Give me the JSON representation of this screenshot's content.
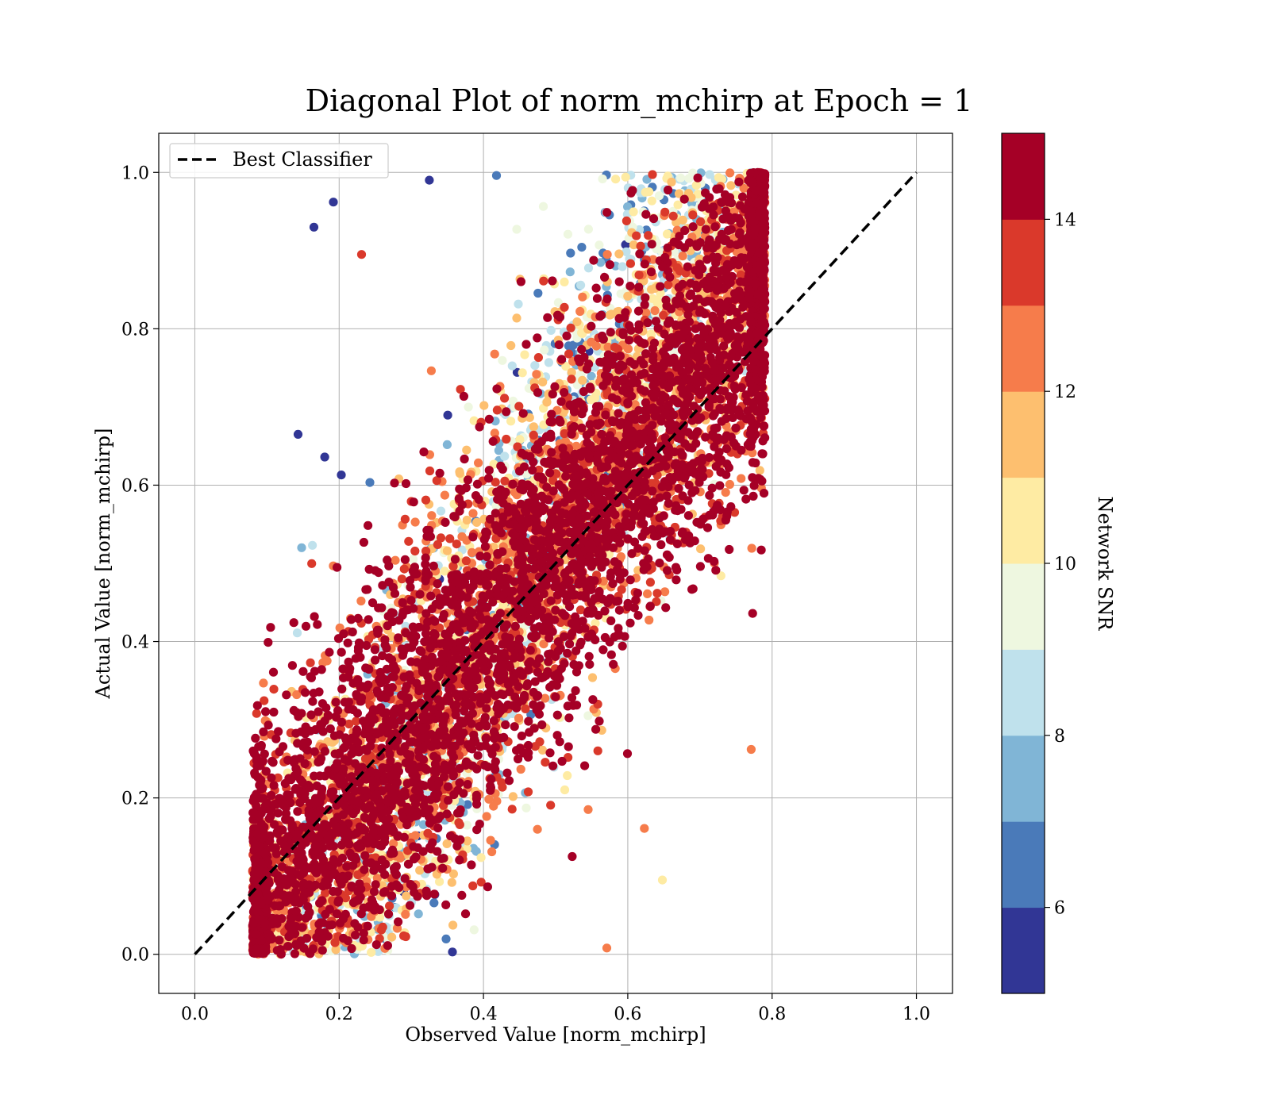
{
  "chart_data": {
    "type": "scatter",
    "title": "Diagonal Plot of norm_mchirp at Epoch = 1",
    "xlabel": "Observed Value [norm_mchirp]",
    "ylabel": "Actual Value [norm_mchirp]",
    "xlim": [
      -0.05,
      1.05
    ],
    "ylim": [
      -0.05,
      1.05
    ],
    "xticks": [
      0.0,
      0.2,
      0.4,
      0.6,
      0.8,
      1.0
    ],
    "yticks": [
      0.0,
      0.2,
      0.4,
      0.6,
      0.8,
      1.0
    ],
    "xtick_labels": [
      "0.0",
      "0.2",
      "0.4",
      "0.6",
      "0.8",
      "1.0"
    ],
    "ytick_labels": [
      "0.0",
      "0.2",
      "0.4",
      "0.6",
      "0.8",
      "1.0"
    ],
    "grid": true,
    "legend": {
      "placement": "top-left",
      "entries": [
        "Best Classifier"
      ]
    },
    "reference_line": {
      "name": "Best Classifier",
      "style": "dashed",
      "color": "#000000",
      "x": [
        0.0,
        1.0
      ],
      "y": [
        0.0,
        1.0
      ]
    },
    "colorbar": {
      "label": "Network SNR",
      "range": [
        5,
        15
      ],
      "bins": 10,
      "ticks": [
        6,
        8,
        10,
        12,
        14
      ],
      "tick_labels": [
        "6",
        "8",
        "10",
        "12",
        "14"
      ],
      "colormap": [
        "#313695",
        "#4575b4",
        "#74add1",
        "#abd9e9",
        "#e0f3f8",
        "#fee090",
        "#fdae61",
        "#f46d43",
        "#d73027",
        "#a50026"
      ],
      "colormap_display": [
        "#313695",
        "#4a7ab9",
        "#80b5d6",
        "#bfe1ec",
        "#eef7e0",
        "#feeba3",
        "#fdbf6f",
        "#f67c4b",
        "#da392b",
        "#a50026"
      ]
    },
    "scatter_summary": {
      "description_points": "Dense scatter of several thousand points; predictions follow the diagonal with spread, high-SNR points (dark red) cluster near the diagonal, low-SNR points (blue) spread toward the prediction mean.",
      "x_range": [
        0.08,
        0.79
      ],
      "y_range": [
        0.0,
        1.0
      ]
    },
    "points_highlight": [
      {
        "x": 0.165,
        "y": 0.93,
        "snr": 5.5
      },
      {
        "x": 0.192,
        "y": 0.962,
        "snr": 5.5
      },
      {
        "x": 0.143,
        "y": 0.665,
        "snr": 5.5
      },
      {
        "x": 0.18,
        "y": 0.636,
        "snr": 5.5
      },
      {
        "x": 0.203,
        "y": 0.613,
        "snr": 5.5
      },
      {
        "x": 0.148,
        "y": 0.52,
        "snr": 7.5
      },
      {
        "x": 0.163,
        "y": 0.523,
        "snr": 8.5
      },
      {
        "x": 0.142,
        "y": 0.411,
        "snr": 8.5
      },
      {
        "x": 0.231,
        "y": 0.895,
        "snr": 13.5
      },
      {
        "x": 0.648,
        "y": 0.095,
        "snr": 10.5
      },
      {
        "x": 0.571,
        "y": 0.008,
        "snr": 12.5
      },
      {
        "x": 0.771,
        "y": 0.262,
        "snr": 12.5
      },
      {
        "x": 0.623,
        "y": 0.161,
        "snr": 12.5
      },
      {
        "x": 0.785,
        "y": 0.517,
        "snr": 14.5
      },
      {
        "x": 0.773,
        "y": 0.436,
        "snr": 14.5
      },
      {
        "x": 0.783,
        "y": 0.693,
        "snr": 14.5
      },
      {
        "x": 0.787,
        "y": 0.891,
        "snr": 14.5
      },
      {
        "x": 0.357,
        "y": 0.003,
        "snr": 5.5
      },
      {
        "x": 0.153,
        "y": 0.003,
        "snr": 11.5
      },
      {
        "x": 0.085,
        "y": 0.075,
        "snr": 14.5
      },
      {
        "x": 0.325,
        "y": 0.99,
        "snr": 5.5
      },
      {
        "x": 0.418,
        "y": 0.996,
        "snr": 6.5
      },
      {
        "x": 0.597,
        "y": 0.994,
        "snr": 10.5
      },
      {
        "x": 0.697,
        "y": 0.993,
        "snr": 14.5
      }
    ]
  }
}
